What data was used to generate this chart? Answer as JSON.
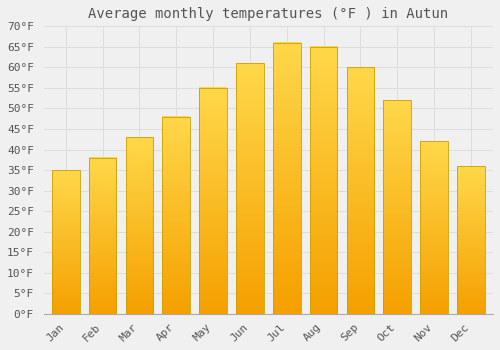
{
  "title": "Average monthly temperatures (°F ) in Autun",
  "months": [
    "Jan",
    "Feb",
    "Mar",
    "Apr",
    "May",
    "Jun",
    "Jul",
    "Aug",
    "Sep",
    "Oct",
    "Nov",
    "Dec"
  ],
  "values": [
    35,
    38,
    43,
    48,
    55,
    61,
    66,
    65,
    60,
    52,
    42,
    36
  ],
  "bar_color_bottom": "#F5A000",
  "bar_color_top": "#FFD84A",
  "bar_edge_color": "#C8A000",
  "background_color": "#F0F0F0",
  "grid_color": "#DDDDDD",
  "text_color": "#555555",
  "ylim": [
    0,
    70
  ],
  "ytick_step": 5,
  "title_fontsize": 10,
  "tick_fontsize": 8,
  "font_family": "monospace"
}
